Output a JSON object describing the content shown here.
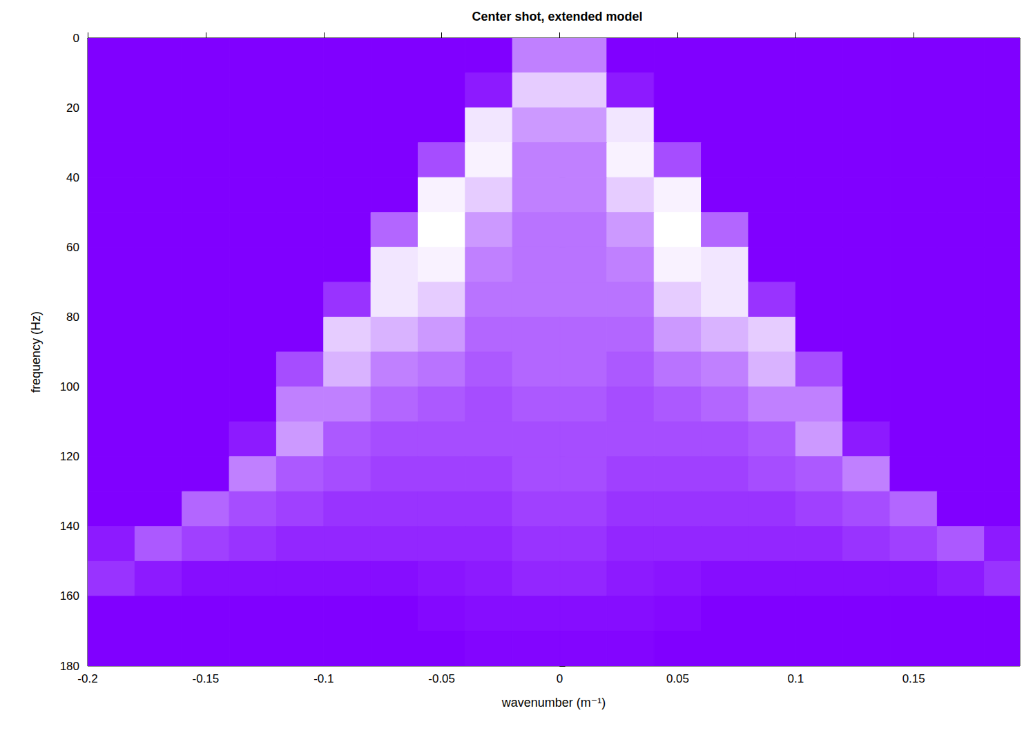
{
  "chart_data": {
    "type": "heatmap",
    "title": "Center shot, extended model",
    "x_label": "wavenumber (m⁻¹)",
    "y_label": "frequency (Hz)",
    "xlim": [
      -0.2,
      0.195
    ],
    "xticks": [
      -0.2,
      -0.15,
      -0.1,
      -0.05,
      0,
      0.05,
      0.1,
      0.15
    ],
    "ylim": [
      0,
      180
    ],
    "yticks": [
      0,
      20,
      40,
      60,
      80,
      100,
      120,
      140,
      160,
      180
    ],
    "grid": false,
    "clim": [
      0,
      1
    ],
    "x": [
      -0.19,
      -0.17,
      -0.15,
      -0.13,
      -0.11,
      -0.09,
      -0.07,
      -0.05,
      -0.03,
      -0.01,
      0.01,
      0.03,
      0.05,
      0.07,
      0.09,
      0.11,
      0.13,
      0.15,
      0.17,
      0.19
    ],
    "y": [
      5,
      15,
      25,
      35,
      45,
      55,
      65,
      75,
      85,
      95,
      105,
      115,
      125,
      135,
      145,
      155,
      165,
      175
    ],
    "cells": [
      [
        0,
        0,
        0,
        0,
        0,
        0,
        0,
        0,
        0,
        0.5,
        0.5,
        0,
        0,
        0,
        0,
        0,
        0,
        0,
        0,
        0
      ],
      [
        0,
        0,
        0,
        0,
        0,
        0,
        0,
        0,
        0.1,
        0.8,
        0.8,
        0.1,
        0,
        0,
        0,
        0,
        0,
        0,
        0,
        0
      ],
      [
        0,
        0,
        0,
        0,
        0,
        0,
        0,
        0,
        0.9,
        0.6,
        0.6,
        0.9,
        0,
        0,
        0,
        0,
        0,
        0,
        0,
        0
      ],
      [
        0,
        0,
        0,
        0,
        0,
        0,
        0,
        0.3,
        0.95,
        0.5,
        0.5,
        0.95,
        0.3,
        0,
        0,
        0,
        0,
        0,
        0,
        0
      ],
      [
        0,
        0,
        0,
        0,
        0,
        0,
        0,
        0.95,
        0.8,
        0.5,
        0.5,
        0.8,
        0.95,
        0,
        0,
        0,
        0,
        0,
        0,
        0
      ],
      [
        0,
        0,
        0,
        0,
        0,
        0,
        0.4,
        1,
        0.6,
        0.45,
        0.45,
        0.6,
        1,
        0.4,
        0,
        0,
        0,
        0,
        0,
        0
      ],
      [
        0,
        0,
        0,
        0,
        0,
        0,
        0.9,
        0.95,
        0.5,
        0.45,
        0.45,
        0.5,
        0.95,
        0.9,
        0,
        0,
        0,
        0,
        0,
        0
      ],
      [
        0,
        0,
        0,
        0,
        0,
        0.2,
        0.9,
        0.8,
        0.45,
        0.45,
        0.45,
        0.45,
        0.8,
        0.9,
        0.2,
        0,
        0,
        0,
        0,
        0
      ],
      [
        0,
        0,
        0,
        0,
        0,
        0.8,
        0.7,
        0.6,
        0.4,
        0.4,
        0.4,
        0.4,
        0.6,
        0.7,
        0.8,
        0,
        0,
        0,
        0,
        0
      ],
      [
        0,
        0,
        0,
        0,
        0.3,
        0.7,
        0.5,
        0.45,
        0.35,
        0.4,
        0.4,
        0.35,
        0.45,
        0.5,
        0.7,
        0.3,
        0,
        0,
        0,
        0
      ],
      [
        0,
        0,
        0,
        0,
        0.5,
        0.5,
        0.4,
        0.35,
        0.3,
        0.35,
        0.35,
        0.3,
        0.35,
        0.4,
        0.5,
        0.5,
        0,
        0,
        0,
        0
      ],
      [
        0,
        0,
        0,
        0.1,
        0.6,
        0.35,
        0.3,
        0.3,
        0.3,
        0.3,
        0.3,
        0.3,
        0.3,
        0.3,
        0.35,
        0.6,
        0.1,
        0,
        0,
        0
      ],
      [
        0,
        0,
        0,
        0.5,
        0.35,
        0.3,
        0.25,
        0.25,
        0.25,
        0.3,
        0.3,
        0.25,
        0.25,
        0.25,
        0.3,
        0.35,
        0.5,
        0,
        0,
        0
      ],
      [
        0,
        0,
        0.4,
        0.3,
        0.25,
        0.2,
        0.2,
        0.2,
        0.2,
        0.25,
        0.25,
        0.2,
        0.2,
        0.2,
        0.2,
        0.25,
        0.3,
        0.4,
        0,
        0
      ],
      [
        0.1,
        0.35,
        0.25,
        0.2,
        0.15,
        0.15,
        0.15,
        0.15,
        0.15,
        0.2,
        0.2,
        0.15,
        0.15,
        0.15,
        0.15,
        0.15,
        0.2,
        0.25,
        0.35,
        0.1
      ],
      [
        0.2,
        0.1,
        0.05,
        0.05,
        0.05,
        0.05,
        0.05,
        0.08,
        0.1,
        0.15,
        0.15,
        0.1,
        0.08,
        0.05,
        0.05,
        0.05,
        0.05,
        0.05,
        0.1,
        0.2
      ],
      [
        0,
        0,
        0,
        0,
        0,
        0,
        0,
        0.03,
        0.05,
        0.05,
        0.05,
        0.05,
        0.03,
        0,
        0,
        0,
        0,
        0,
        0,
        0
      ],
      [
        0,
        0,
        0,
        0,
        0,
        0,
        0,
        0,
        0.02,
        0.02,
        0.02,
        0.02,
        0,
        0,
        0,
        0,
        0,
        0,
        0,
        0
      ]
    ]
  }
}
